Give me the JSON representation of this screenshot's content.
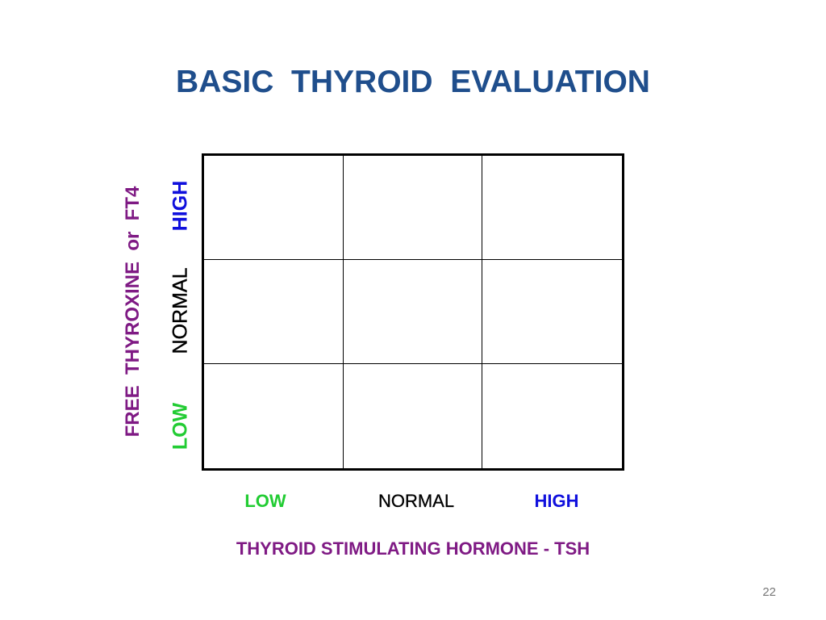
{
  "title": "BASIC  THYROID  EVALUATION",
  "y_axis": {
    "title": "FREE  THYROXINE  or  FT4",
    "levels": {
      "low": "LOW",
      "normal": "NORMAL",
      "high": "HIGH"
    }
  },
  "x_axis": {
    "title": "THYROID STIMULATING HORMONE - TSH",
    "levels": {
      "low": "LOW",
      "normal": "NORMAL",
      "high": "HIGH"
    }
  },
  "page_number": "22",
  "colors": {
    "title": "#1f4e8c",
    "axis_title": "#7f1a84",
    "low": "#22cc33",
    "normal": "#000000",
    "high": "#1010dd"
  }
}
